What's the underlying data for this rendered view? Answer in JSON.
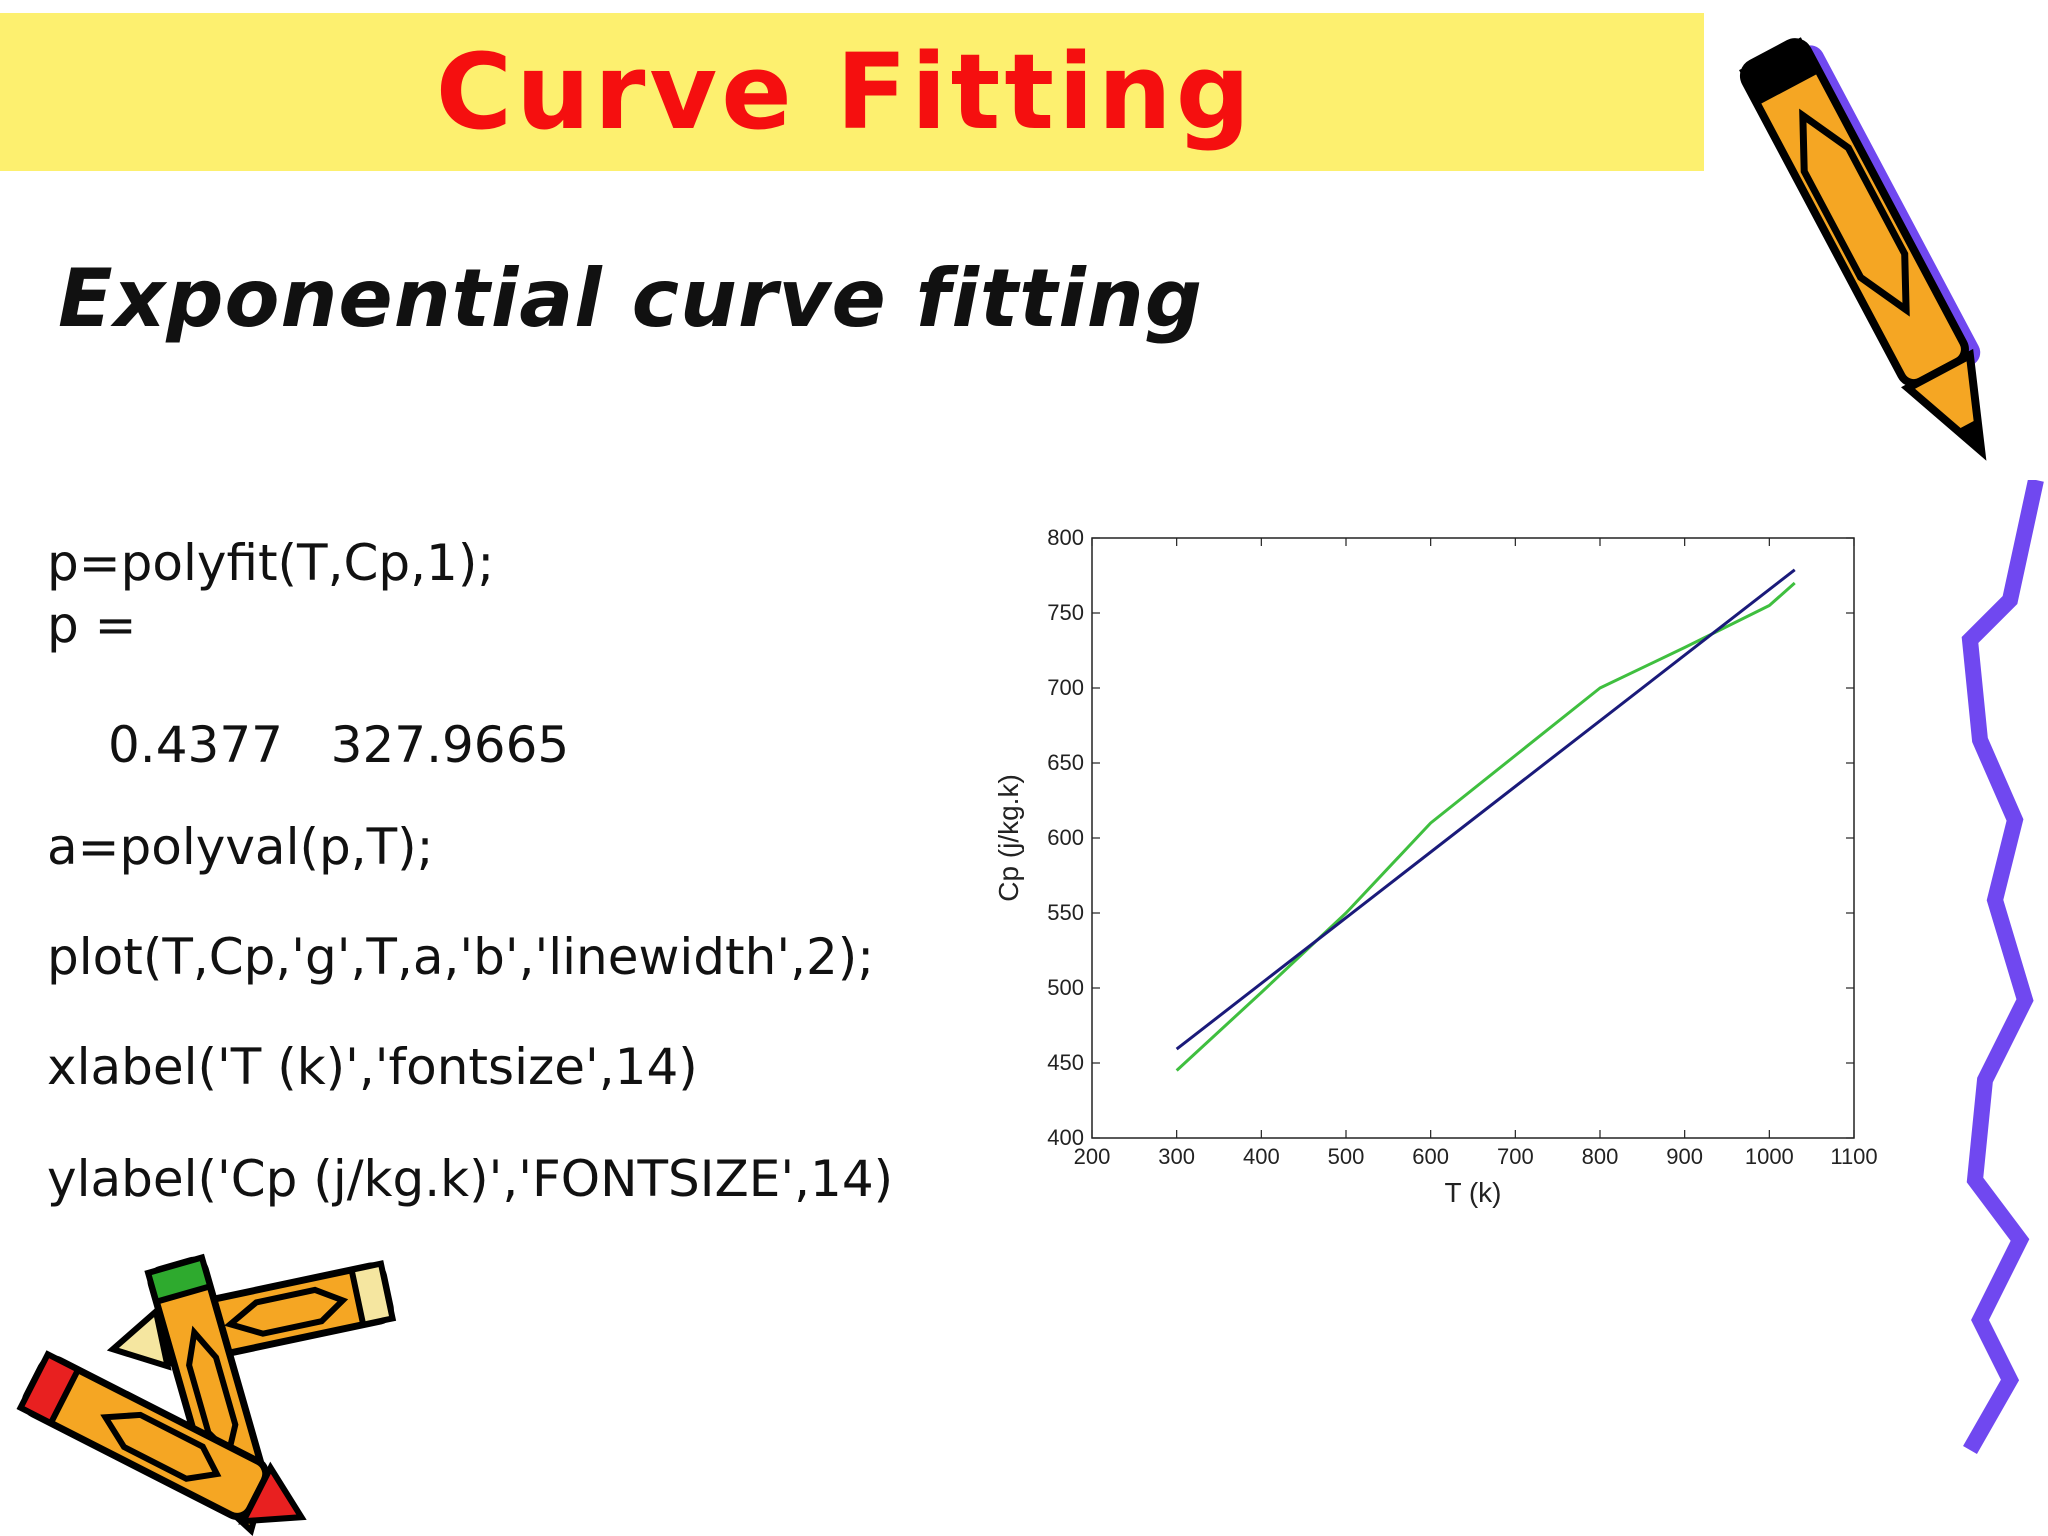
{
  "slide": {
    "title": "Curve Fitting",
    "subtitle": "Exponential curve fitting",
    "code_lines": [
      "p=polyfit(T,Cp,1);",
      "p =",
      "0.4377   327.9665",
      "a=polyval(p,T);",
      "plot(T,Cp,'g',T,a,'b','linewidth',2);",
      "xlabel('T (k)','fontsize',14)",
      "ylabel('Cp (j/kg.k)','FONTSIZE',14)"
    ]
  },
  "chart_data": {
    "type": "line",
    "xlabel": "T (k)",
    "ylabel": "Cp (j/kg.k)",
    "xlim": [
      200,
      1100
    ],
    "ylim": [
      400,
      800
    ],
    "xticks": [
      200,
      300,
      400,
      500,
      600,
      700,
      800,
      900,
      1000,
      1100
    ],
    "yticks": [
      400,
      450,
      500,
      550,
      600,
      650,
      700,
      750,
      800
    ],
    "grid": false,
    "series": [
      {
        "color": "#3fbf3f",
        "x": [
          300,
          400,
          500,
          600,
          700,
          800,
          900,
          1000,
          1030
        ],
        "y": [
          445,
          497,
          550,
          610,
          655,
          700,
          727,
          755,
          770
        ]
      },
      {
        "color": "#1a1a7a",
        "x": [
          300,
          1030
        ],
        "y": [
          459.3,
          778.8
        ]
      }
    ]
  },
  "colors": {
    "title_bg": "#fdf06f",
    "title_text": "#f50f0f",
    "pencil_orange": "#f5a623",
    "squiggle_purple": "#7048f0"
  }
}
